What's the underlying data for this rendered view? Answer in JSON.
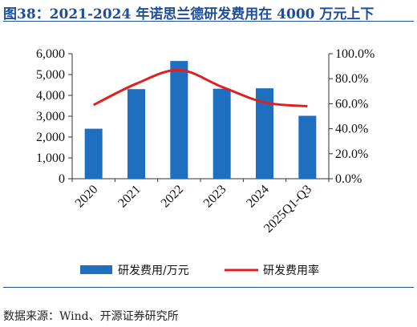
{
  "title": "图38：2021-2024 年诺思兰德研发费用在 4000 万元上下",
  "source": "数据来源：Wind、开源证券研究所",
  "chart_data": {
    "type": "bar",
    "categories": [
      "2020",
      "2021",
      "2022",
      "2023",
      "2024",
      "2025Q1-Q3"
    ],
    "series": [
      {
        "name": "研发费用/万元",
        "type": "bar",
        "axis": "left",
        "values": [
          2400,
          4300,
          5650,
          4320,
          4340,
          3020
        ],
        "color": "#1f6fc0"
      },
      {
        "name": "研发费用率",
        "type": "line",
        "axis": "right",
        "values": [
          59.0,
          76.0,
          87.0,
          73.5,
          61.0,
          58.0
        ],
        "color": "#e02020"
      }
    ],
    "y_left": {
      "min": 0,
      "max": 6000,
      "ticks": [
        0,
        1000,
        2000,
        3000,
        4000,
        5000,
        6000
      ],
      "tick_labels": [
        "0",
        "1,000",
        "2,000",
        "3,000",
        "4,000",
        "5,000",
        "6,000"
      ]
    },
    "y_right": {
      "min": 0,
      "max": 100,
      "ticks": [
        0,
        20,
        40,
        60,
        80,
        100
      ],
      "tick_labels": [
        "0.0%",
        "20.0%",
        "40.0%",
        "60.0%",
        "80.0%",
        "100.0%"
      ]
    },
    "grid": false,
    "legend_position": "bottom"
  }
}
